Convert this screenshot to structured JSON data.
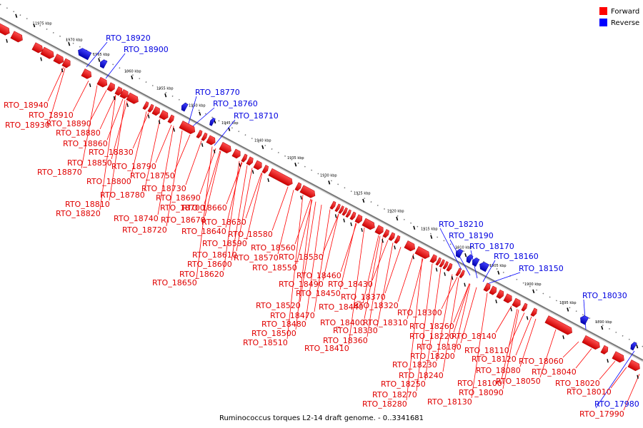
{
  "legend": {
    "forward_label": "Forward",
    "reverse_label": "Reverse",
    "forward_color": "#ff0000",
    "reverse_color": "#0000ff"
  },
  "caption": "Ruminococcus torques L2-14 draft genome. - 0..3341681",
  "scale_marks": [
    "1975 kbp",
    "1970 kbp",
    "1965 kbp",
    "1960 kbp",
    "1955 kbp",
    "1950 kbp",
    "1945 kbp",
    "1940 kbp",
    "1935 kbp",
    "1930 kbp",
    "1925 kbp",
    "1920 kbp",
    "1915 kbp",
    "1910 kbp",
    "1905 kbp",
    "1900 kbp",
    "1895 kbp",
    "1890 kbp"
  ],
  "reverse_genes": [
    "RTO_18920",
    "RTO_18900",
    "RTO_18770",
    "RTO_18760",
    "RTO_18710",
    "RTO_18210",
    "RTO_18190",
    "RTO_18170",
    "RTO_18160",
    "RTO_18150",
    "RTO_18030",
    "RTO_17980"
  ],
  "forward_genes": [
    "RTO_18940",
    "RTO_18910",
    "RTO_18930",
    "RTO_18890",
    "RTO_18880",
    "RTO_18860",
    "RTO_18830",
    "RTO_18850",
    "RTO_18790",
    "RTO_18870",
    "RTO_18750",
    "RTO_18800",
    "RTO_18730",
    "RTO_18780",
    "RTO_18690",
    "RTO_18810",
    "RTO_18700",
    "RTO_18660",
    "RTO_18820",
    "RTO_18740",
    "RTO_18670",
    "RTO_18630",
    "RTO_18720",
    "RTO_18640",
    "RTO_18580",
    "RTO_18590",
    "RTO_18560",
    "RTO_18610",
    "RTO_18570",
    "RTO_18530",
    "RTO_18600",
    "RTO_18550",
    "RTO_18620",
    "RTO_18460",
    "RTO_18650",
    "RTO_18490",
    "RTO_18430",
    "RTO_18450",
    "RTO_18370",
    "RTO_18520",
    "RTO_18440",
    "RTO_18320",
    "RTO_18470",
    "RTO_18300",
    "RTO_18400",
    "RTO_18310",
    "RTO_18480",
    "RTO_18260",
    "RTO_18330",
    "RTO_18500",
    "RTO_18220",
    "RTO_18140",
    "RTO_18360",
    "RTO_18180",
    "RTO_18510",
    "RTO_18410",
    "RTO_18110",
    "RTO_18200",
    "RTO_18120",
    "RTO_18060",
    "RTO_18230",
    "RTO_18080",
    "RTO_18040",
    "RTO_18240",
    "RTO_18050",
    "RTO_18100",
    "RTO_18020",
    "RTO_18250",
    "RTO_18090",
    "RTO_18010",
    "RTO_18270",
    "RTO_18280",
    "RTO_18130",
    "RTO_17990"
  ]
}
